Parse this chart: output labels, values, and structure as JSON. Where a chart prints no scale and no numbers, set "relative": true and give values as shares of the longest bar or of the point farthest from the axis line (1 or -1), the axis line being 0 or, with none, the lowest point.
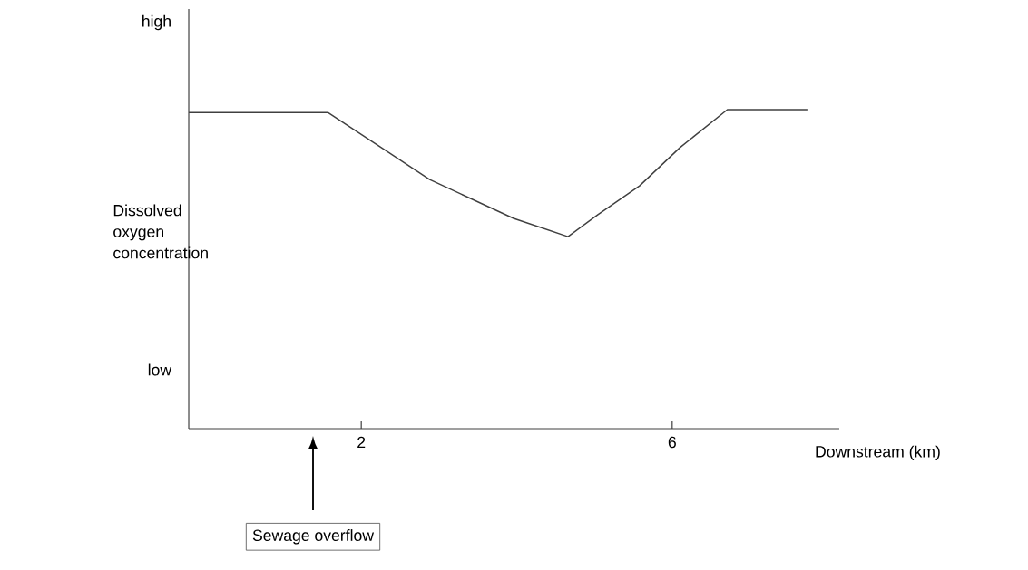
{
  "chart_data": {
    "type": "line",
    "relative": true,
    "xlabel": "Downstream (km)",
    "ylabel": "Dissolved oxygen concentration",
    "x": [
      -0.22,
      1.57,
      2.24,
      2.88,
      3.96,
      4.66,
      5.04,
      5.58,
      6.1,
      6.71,
      7.74
    ],
    "values": [
      0.991,
      0.991,
      0.884,
      0.781,
      0.659,
      0.602,
      0.67,
      0.761,
      0.881,
      1.0,
      1.0
    ],
    "color": "#404040",
    "line_style": "solid",
    "xlim": [
      -0.22,
      8.15
    ],
    "xticks": [
      2,
      6
    ],
    "annotations": [
      "high",
      "low",
      "Sewage overflow"
    ]
  }
}
